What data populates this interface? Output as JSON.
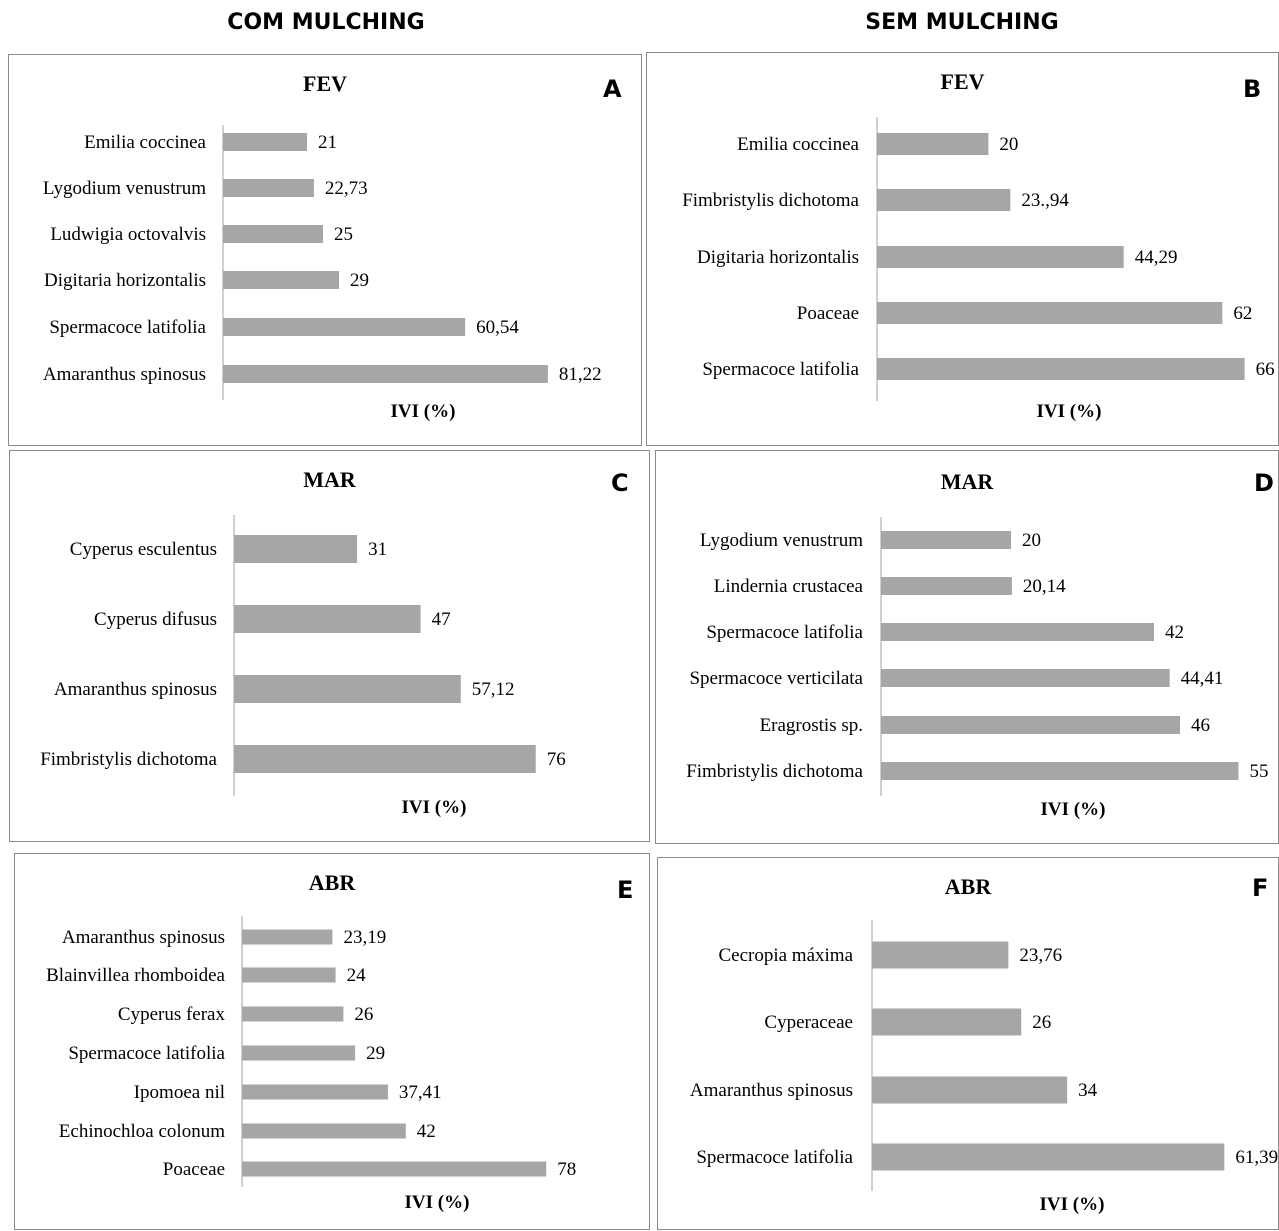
{
  "headers": {
    "left": "COM MULCHING",
    "right": "SEM MULCHING"
  },
  "colors": {
    "bar": "#a6a6a6",
    "axis": "#a0a0a0",
    "border": "#8a8a8a"
  },
  "chart_data": [
    {
      "id": "A",
      "type": "bar",
      "orientation": "horizontal",
      "title": "FEV",
      "xlabel": "IVI (%)",
      "categories": [
        "Emilia coccinea",
        "Lygodium venustrum",
        "Ludwigia octovalvis",
        "Digitaria horizontalis",
        "Spermacoce latifolia",
        "Amaranthus spinosus"
      ],
      "values": [
        21,
        22.73,
        25,
        29,
        60.54,
        81.22
      ],
      "labels": [
        "21",
        "22,73",
        "25",
        "29",
        "60,54",
        "81,22"
      ]
    },
    {
      "id": "B",
      "type": "bar",
      "orientation": "horizontal",
      "title": "FEV",
      "xlabel": "IVI (%)",
      "categories": [
        "Emilia coccinea",
        "Fimbristylis dichotoma",
        "Digitaria horizontalis",
        "Poaceae",
        "Spermacoce latifolia"
      ],
      "values": [
        20,
        23.94,
        44.29,
        62,
        66
      ],
      "labels": [
        "20",
        "23.,94",
        "44,29",
        "62",
        "66"
      ]
    },
    {
      "id": "C",
      "type": "bar",
      "orientation": "horizontal",
      "title": "MAR",
      "xlabel": "IVI (%)",
      "categories": [
        "Cyperus esculentus",
        "Cyperus difusus",
        "Amaranthus spinosus",
        "Fimbristylis dichotoma"
      ],
      "values": [
        31,
        47,
        57.12,
        76
      ],
      "labels": [
        "31",
        "47",
        "57,12",
        "76"
      ]
    },
    {
      "id": "D",
      "type": "bar",
      "orientation": "horizontal",
      "title": "MAR",
      "xlabel": "IVI (%)",
      "categories": [
        "Lygodium venustrum",
        "Lindernia crustacea",
        "Spermacoce latifolia",
        "Spermacoce verticilata",
        "Eragrostis sp.",
        "Fimbristylis dichotoma"
      ],
      "values": [
        20,
        20.14,
        42,
        44.41,
        46,
        55
      ],
      "labels": [
        "20",
        "20,14",
        "42",
        "44,41",
        "46",
        "55"
      ]
    },
    {
      "id": "E",
      "type": "bar",
      "orientation": "horizontal",
      "title": "ABR",
      "xlabel": "IVI (%)",
      "categories": [
        "Amaranthus spinosus",
        "Blainvillea rhomboidea",
        "Cyperus ferax",
        "Spermacoce latifolia",
        "Ipomoea nil",
        "Echinochloa colonum",
        "Poaceae"
      ],
      "values": [
        23.19,
        24,
        26,
        29,
        37.41,
        42,
        78
      ],
      "labels": [
        "23,19",
        "24",
        "26",
        "29",
        "37,41",
        "42",
        "78"
      ]
    },
    {
      "id": "F",
      "type": "bar",
      "orientation": "horizontal",
      "title": "ABR",
      "xlabel": "IVI (%)",
      "categories": [
        "Cecropia máxima",
        "Cyperaceae",
        "Amaranthus spinosus",
        "Spermacoce latifolia"
      ],
      "values": [
        23.76,
        26,
        34,
        61.39
      ],
      "labels": [
        "23,76",
        "26",
        "34",
        "61,39"
      ]
    }
  ]
}
